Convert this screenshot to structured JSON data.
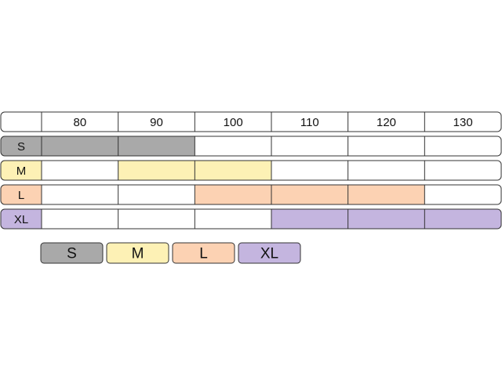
{
  "chart_data": {
    "type": "table",
    "columns": [
      "80",
      "90",
      "100",
      "110",
      "120",
      "130"
    ],
    "rows": [
      {
        "label": "S",
        "color": "#a9a9a9",
        "covered": [
          "80",
          "90"
        ]
      },
      {
        "label": "M",
        "color": "#fdf1b5",
        "covered": [
          "90",
          "100"
        ]
      },
      {
        "label": "L",
        "color": "#fcd2b3",
        "covered": [
          "100",
          "110",
          "120"
        ]
      },
      {
        "label": "XL",
        "color": "#c4b5df",
        "covered": [
          "110",
          "120",
          "130"
        ]
      }
    ],
    "legend": [
      {
        "label": "S",
        "color": "#a9a9a9"
      },
      {
        "label": "M",
        "color": "#fdf1b5"
      },
      {
        "label": "L",
        "color": "#fcd2b3"
      },
      {
        "label": "XL",
        "color": "#c4b5df"
      }
    ]
  }
}
